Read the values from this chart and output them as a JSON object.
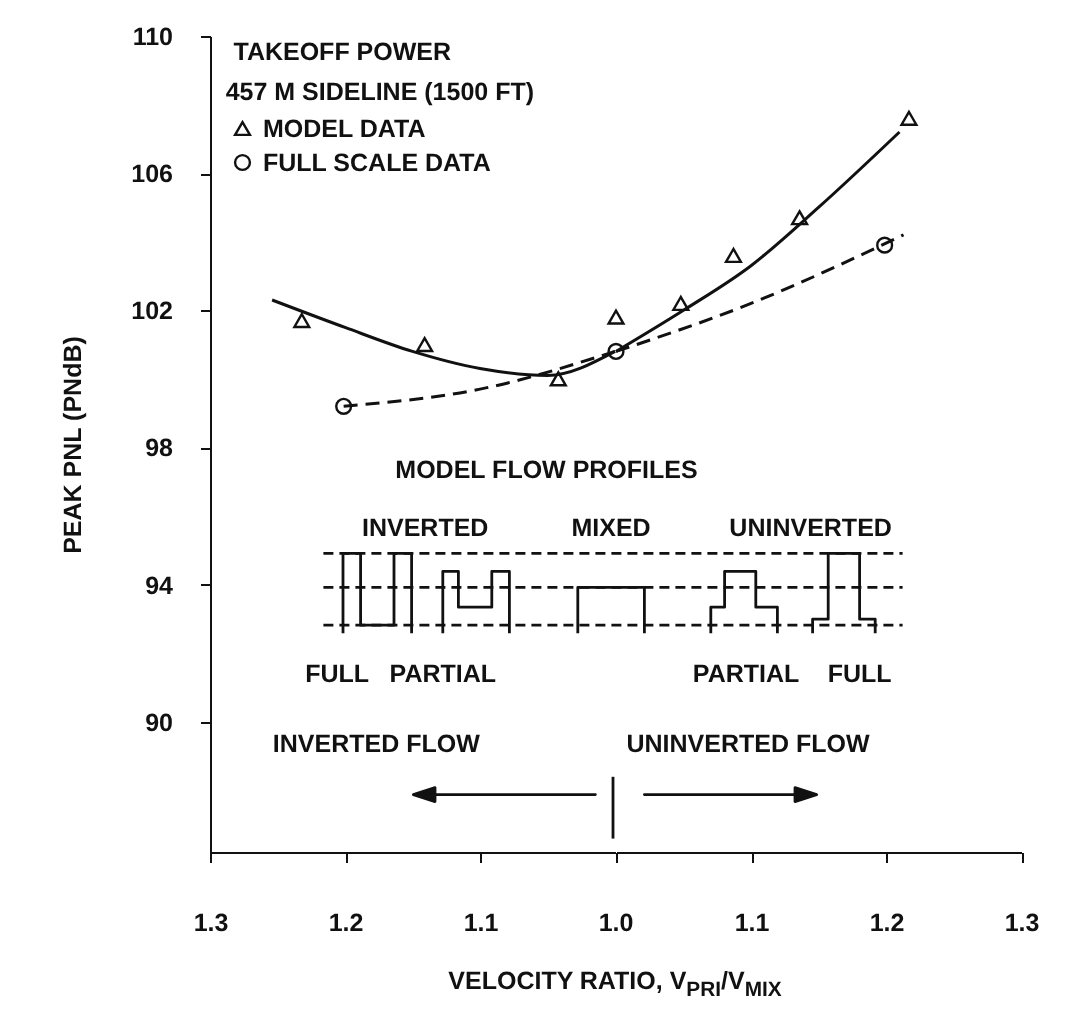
{
  "chart_data": [
    {
      "type": "scatter",
      "title": "TAKEOFF POWER",
      "subtitle": "457 M SIDELINE (1500 FT)",
      "xlabel": "VELOCITY RATIO, V$_{PRI}$/V$_{MIX}$",
      "ylabel": "PEAK PNL (PNdB)",
      "series": [
        {
          "name": "MODEL DATA",
          "type": "scatter",
          "marker": "triangle",
          "color": "#111111",
          "x": [
            1.232,
            1.141,
            1.042
          ],
          "values": [
            101.7,
            101.0,
            100.0
          ]
        },
        {
          "type": "line",
          "line_style": "solid",
          "color": "#111111",
          "x": [
            1.254,
            1.2,
            1.15,
            1.1,
            1.05,
            1.0
          ],
          "values": [
            102.3,
            101.5,
            100.8,
            100.3,
            100.1,
            100.8
          ]
        },
        {
          "name": "FULL SCALE DATA",
          "type": "scatter",
          "marker": "circle",
          "color": "#111111",
          "x": [
            1.201
          ],
          "values": [
            99.2
          ]
        },
        {
          "type": "line",
          "line_style": "dashed",
          "color": "#111111",
          "x": [
            1.201,
            1.1,
            1.0
          ],
          "values": [
            99.2,
            99.7,
            100.8
          ]
        }
      ],
      "xlim": [
        1.3,
        1.0
      ],
      "xticks": [
        1.3,
        1.2,
        1.1,
        {
          "value": 1.0,
          "label": "1.0"
        }
      ],
      "ylim": [
        86.2,
        110
      ],
      "yticks": [
        90,
        94,
        98,
        102,
        106,
        110
      ],
      "legend": "top left",
      "annotations": [
        "MODEL FLOW PROFILES",
        "INVERTED",
        "MIXED",
        "FULL",
        "PARTIAL",
        "INVERTED FLOW"
      ]
    },
    {
      "type": "scatter",
      "series": [
        {
          "type": "scatter",
          "marker": "triangle",
          "color": "#111111",
          "x": [
            1.0,
            1.048,
            1.087,
            1.136,
            1.217
          ],
          "values": [
            101.8,
            102.2,
            103.6,
            104.7,
            107.6
          ]
        },
        {
          "type": "line",
          "line_style": "solid",
          "color": "#111111",
          "x": [
            1.0,
            1.05,
            1.1,
            1.15,
            1.21
          ],
          "values": [
            100.8,
            102.0,
            103.3,
            105.0,
            107.2
          ]
        },
        {
          "type": "scatter",
          "marker": "circle",
          "color": "#111111",
          "x": [
            1.0,
            1.199
          ],
          "values": [
            100.8,
            103.9
          ]
        },
        {
          "type": "line",
          "line_style": "dashed",
          "color": "#111111",
          "x": [
            1.0,
            1.1,
            1.213
          ],
          "values": [
            100.8,
            102.2,
            104.2
          ]
        }
      ],
      "xlim": [
        1.0,
        1.3
      ],
      "xticks": [
        1.1,
        1.2,
        1.3
      ],
      "ylim": [
        86.2,
        110
      ],
      "tick_labels": "x",
      "annotations": [
        "UNINVERTED",
        "PARTIAL",
        "FULL",
        "UNINVERTED FLOW"
      ]
    }
  ]
}
